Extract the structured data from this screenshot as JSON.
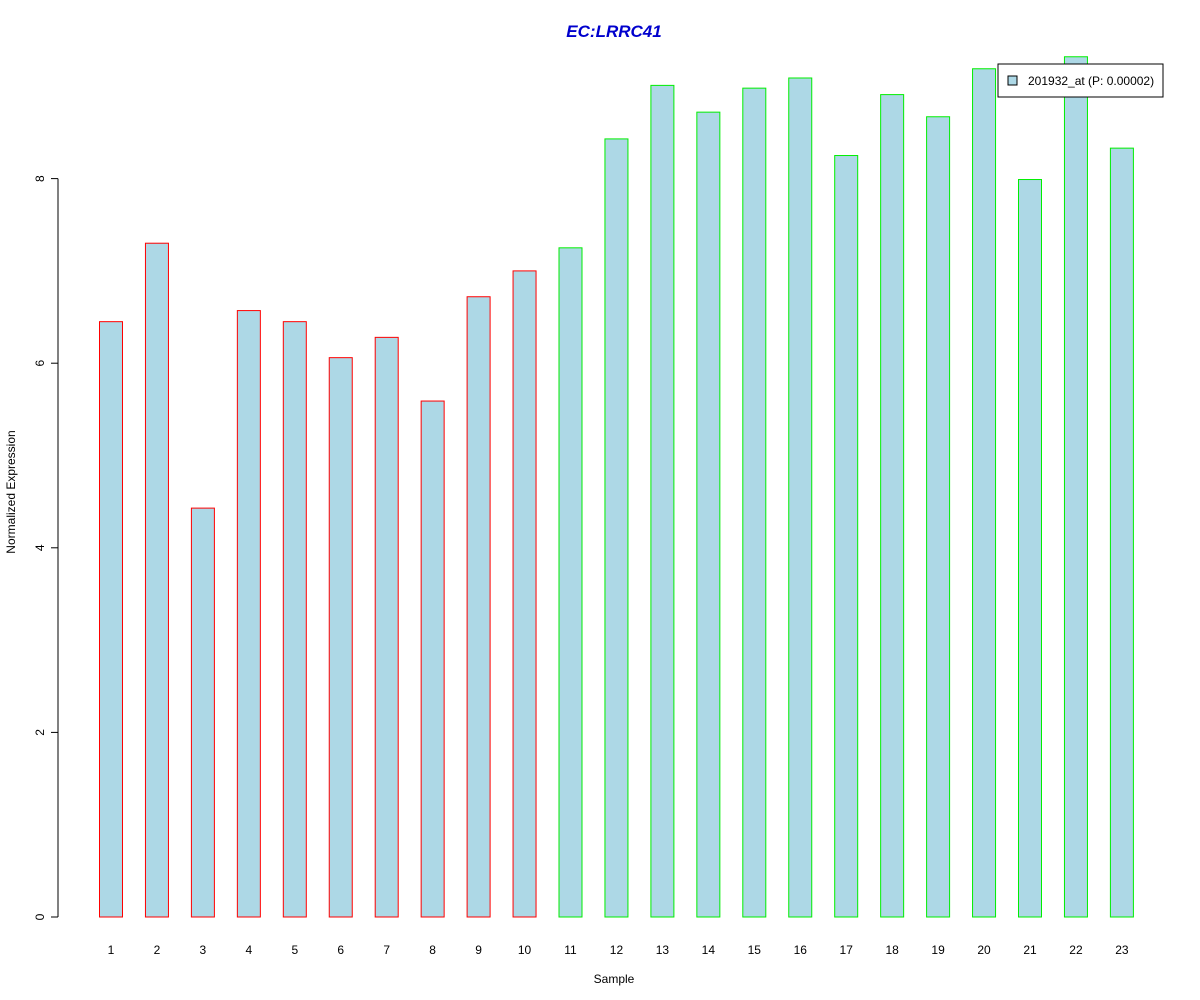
{
  "chart_data": {
    "type": "bar",
    "title": "EC:LRRC41",
    "xlabel": "Sample",
    "ylabel": "Normalized Expression",
    "categories": [
      "1",
      "2",
      "3",
      "4",
      "5",
      "6",
      "7",
      "8",
      "9",
      "10",
      "11",
      "12",
      "13",
      "14",
      "15",
      "16",
      "17",
      "18",
      "19",
      "20",
      "21",
      "22",
      "23"
    ],
    "series": [
      {
        "name": "201932_at (P: 0.00002)",
        "values": [
          6.45,
          7.3,
          4.43,
          6.57,
          6.45,
          6.06,
          6.28,
          5.59,
          6.72,
          7.0,
          7.25,
          8.43,
          9.01,
          8.72,
          8.98,
          9.09,
          8.25,
          8.91,
          8.67,
          9.19,
          7.99,
          9.32,
          8.33
        ]
      }
    ],
    "ylim": [
      0,
      9.6
    ],
    "yticks": [
      0,
      2,
      4,
      6,
      8
    ],
    "groups": [
      "red",
      "red",
      "red",
      "red",
      "red",
      "red",
      "red",
      "red",
      "red",
      "red",
      "green",
      "green",
      "green",
      "green",
      "green",
      "green",
      "green",
      "green",
      "green",
      "green",
      "green",
      "green",
      "green"
    ],
    "colors": {
      "bar_fill": "#add8e6",
      "red": "#ff0000",
      "green": "#00ee00",
      "title": "#0000cd",
      "axis": "#000000"
    },
    "legend_position": "top-right",
    "grid": false
  }
}
